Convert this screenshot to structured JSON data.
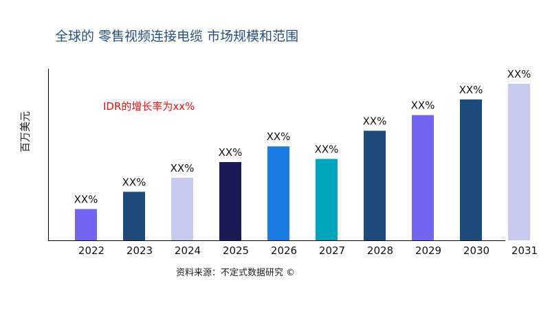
{
  "title": "全球的 零售视频连接电缆 市场规模和范围",
  "annotation": "IDR的增长率为xx%",
  "source": "资料来源：不定式数据研究 ©",
  "chart_data": {
    "type": "bar",
    "ylabel": "百万美元",
    "xlabel": "",
    "categories": [
      "2022",
      "2023",
      "2024",
      "2025",
      "2026",
      "2027",
      "2028",
      "2029",
      "2030",
      "2031"
    ],
    "values": [
      20,
      31,
      40,
      50,
      60,
      52,
      70,
      80,
      90,
      100
    ],
    "ylim": [
      0,
      100
    ],
    "data_labels": [
      "XX%",
      "XX%",
      "XX%",
      "XX%",
      "XX%",
      "XX%",
      "XX%",
      "XX%",
      "XX%",
      "XX%"
    ],
    "colors": [
      "#7265f0",
      "#1e4a7b",
      "#c8cbef",
      "#1c1a55",
      "#1a7be3",
      "#00a5bb",
      "#1e4a7b",
      "#7265f0",
      "#1e4a7b",
      "#c8cbef"
    ],
    "grid": false,
    "legend": "none"
  }
}
